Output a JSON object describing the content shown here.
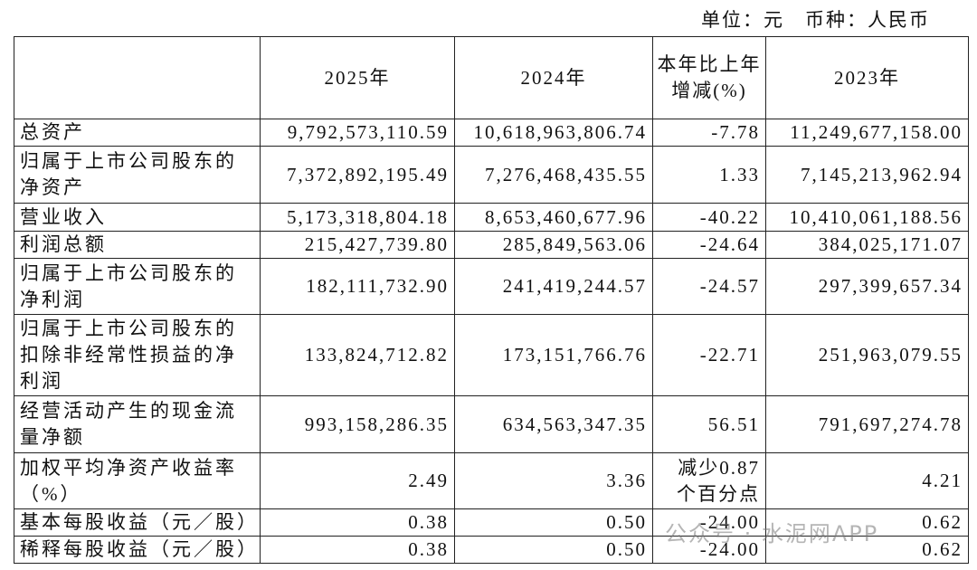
{
  "unit_note": "单位：元　币种：人民币",
  "table": {
    "header": [
      "2025年",
      "2024年",
      "本年比上年增减(%)",
      "2023年"
    ],
    "rows": [
      [
        "总资产",
        "9,792,573,110.59",
        "10,618,963,806.74",
        "-7.78",
        "11,249,677,158.00"
      ],
      [
        "归属于上市公司股东的净资产",
        "7,372,892,195.49",
        "7,276,468,435.55",
        "1.33",
        "7,145,213,962.94"
      ],
      [
        "营业收入",
        "5,173,318,804.18",
        "8,653,460,677.96",
        "-40.22",
        "10,410,061,188.56"
      ],
      [
        "利润总额",
        "215,427,739.80",
        "285,849,563.06",
        "-24.64",
        "384,025,171.07"
      ],
      [
        "归属于上市公司股东的净利润",
        "182,111,732.90",
        "241,419,244.57",
        "-24.57",
        "297,399,657.34"
      ],
      [
        "归属于上市公司股东的扣除非经常性损益的净利润",
        "133,824,712.82",
        "173,151,766.76",
        "-22.71",
        "251,963,079.55"
      ],
      [
        "经营活动产生的现金流量净额",
        "993,158,286.35",
        "634,563,347.35",
        "56.51",
        "791,697,274.78"
      ],
      [
        "加权平均净资产收益率（%）",
        "2.49",
        "3.36",
        "减少0.87个百分点",
        "4.21"
      ],
      [
        "基本每股收益（元／股）",
        "0.38",
        "0.50",
        "-24.00",
        "0.62"
      ],
      [
        "稀释每股收益（元／股）",
        "0.38",
        "0.50",
        "-24.00",
        "0.62"
      ]
    ]
  },
  "watermark": "公众号 · 水泥网APP"
}
